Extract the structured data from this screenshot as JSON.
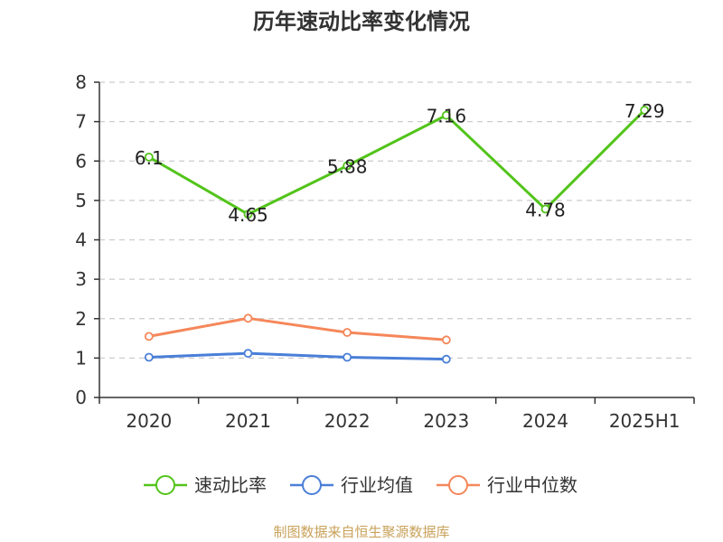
{
  "chart_data": {
    "type": "line",
    "title": "历年速动比率变化情况",
    "categories": [
      "2020",
      "2021",
      "2022",
      "2023",
      "2024",
      "2025H1"
    ],
    "y_ticks": [
      "0",
      "1",
      "2",
      "3",
      "4",
      "5",
      "6",
      "7",
      "8"
    ],
    "ylim": [
      0,
      8
    ],
    "grid": true,
    "legend_position": "bottom",
    "series": [
      {
        "name": "速动比率",
        "color": "#52c41a",
        "values": [
          6.1,
          4.65,
          5.88,
          7.16,
          4.78,
          7.29
        ],
        "labels": [
          "6.1",
          "4.65",
          "5.88",
          "7.16",
          "4.78",
          "7.29"
        ]
      },
      {
        "name": "行业均值",
        "color": "#4a7fd8",
        "values": [
          1.02,
          1.12,
          1.02,
          0.97,
          null,
          null
        ]
      },
      {
        "name": "行业中位数",
        "color": "#f5875a",
        "values": [
          1.55,
          2.01,
          1.65,
          1.46,
          null,
          null
        ]
      }
    ]
  },
  "source_note": "制图数据来自恒生聚源数据库"
}
